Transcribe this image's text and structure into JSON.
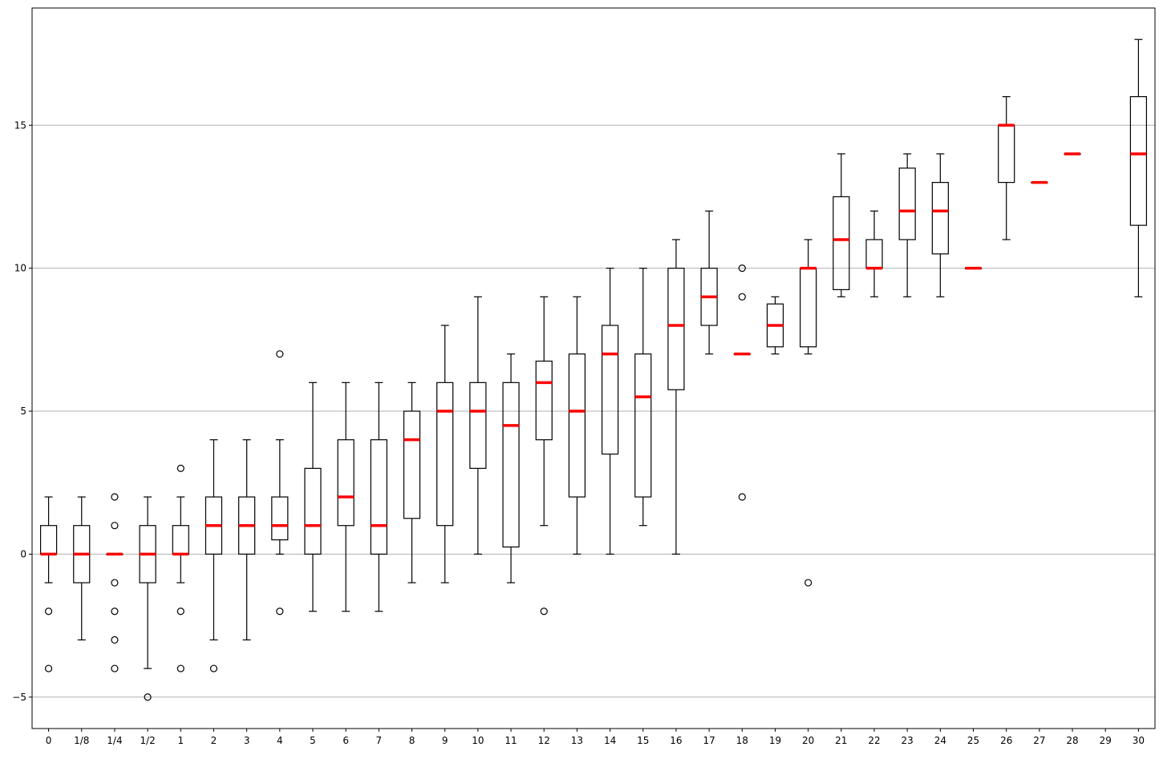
{
  "chart_data": {
    "type": "box",
    "title": "",
    "xlabel": "",
    "ylabel": "",
    "ylim": [
      -6.1,
      19.1
    ],
    "yticks": [
      -5,
      0,
      5,
      10,
      15
    ],
    "ytick_labels": [
      "−5",
      "0",
      "5",
      "10",
      "15"
    ],
    "grid": "horizontal",
    "median_color": "#ff0000",
    "box_color": "#000000",
    "grid_color": "#b0b0b0",
    "categories": [
      "0",
      "1/8",
      "1/4",
      "1/2",
      "1",
      "2",
      "3",
      "4",
      "5",
      "6",
      "7",
      "8",
      "9",
      "10",
      "11",
      "12",
      "13",
      "14",
      "15",
      "16",
      "17",
      "18",
      "19",
      "20",
      "21",
      "22",
      "23",
      "24",
      "25",
      "26",
      "27",
      "28",
      "29",
      "30"
    ],
    "boxes": [
      {
        "label": "0",
        "whislo": -1,
        "q1": 0,
        "med": 0,
        "q3": 1,
        "whishi": 2,
        "fliers": [
          -2,
          -4
        ]
      },
      {
        "label": "1/8",
        "whislo": -3,
        "q1": -1,
        "med": 0,
        "q3": 1,
        "whishi": 2,
        "fliers": []
      },
      {
        "label": "1/4",
        "whislo": 0,
        "q1": 0,
        "med": 0,
        "q3": 0,
        "whishi": 0,
        "fliers": [
          2,
          1,
          -1,
          -2,
          -3,
          -4
        ]
      },
      {
        "label": "1/2",
        "whislo": -4,
        "q1": -1,
        "med": 0,
        "q3": 1,
        "whishi": 2,
        "fliers": [
          -5
        ]
      },
      {
        "label": "1",
        "whislo": -1,
        "q1": 0,
        "med": 0,
        "q3": 1,
        "whishi": 2,
        "fliers": [
          3,
          -2,
          -4
        ]
      },
      {
        "label": "2",
        "whislo": -3,
        "q1": 0,
        "med": 1,
        "q3": 2,
        "whishi": 4,
        "fliers": [
          -4
        ]
      },
      {
        "label": "3",
        "whislo": -3,
        "q1": 0,
        "med": 1,
        "q3": 2,
        "whishi": 4,
        "fliers": []
      },
      {
        "label": "4",
        "whislo": 0,
        "q1": 0.5,
        "med": 1,
        "q3": 2,
        "whishi": 4,
        "fliers": [
          7,
          -2
        ]
      },
      {
        "label": "5",
        "whislo": -2,
        "q1": 0,
        "med": 1,
        "q3": 3,
        "whishi": 6,
        "fliers": []
      },
      {
        "label": "6",
        "whislo": -2,
        "q1": 1,
        "med": 2,
        "q3": 4,
        "whishi": 6,
        "fliers": []
      },
      {
        "label": "7",
        "whislo": -2,
        "q1": 0,
        "med": 1,
        "q3": 4,
        "whishi": 6,
        "fliers": []
      },
      {
        "label": "8",
        "whislo": -1,
        "q1": 1.25,
        "med": 4,
        "q3": 5,
        "whishi": 6,
        "fliers": []
      },
      {
        "label": "9",
        "whislo": -1,
        "q1": 1,
        "med": 5,
        "q3": 6,
        "whishi": 8,
        "fliers": []
      },
      {
        "label": "10",
        "whislo": 0,
        "q1": 3,
        "med": 5,
        "q3": 6,
        "whishi": 9,
        "fliers": []
      },
      {
        "label": "11",
        "whislo": -1,
        "q1": 0.25,
        "med": 4.5,
        "q3": 6,
        "whishi": 7,
        "fliers": []
      },
      {
        "label": "12",
        "whislo": 1,
        "q1": 4,
        "med": 6,
        "q3": 6.75,
        "whishi": 9,
        "fliers": [
          -2
        ]
      },
      {
        "label": "13",
        "whislo": 0,
        "q1": 2,
        "med": 5,
        "q3": 7,
        "whishi": 9,
        "fliers": []
      },
      {
        "label": "14",
        "whislo": 0,
        "q1": 3.5,
        "med": 7,
        "q3": 8,
        "whishi": 10,
        "fliers": []
      },
      {
        "label": "15",
        "whislo": 1,
        "q1": 2,
        "med": 5.5,
        "q3": 7,
        "whishi": 10,
        "fliers": []
      },
      {
        "label": "16",
        "whislo": 0,
        "q1": 5.75,
        "med": 8,
        "q3": 10,
        "whishi": 11,
        "fliers": []
      },
      {
        "label": "17",
        "whislo": 7,
        "q1": 8,
        "med": 9,
        "q3": 10,
        "whishi": 12,
        "fliers": []
      },
      {
        "label": "18",
        "whislo": 7,
        "q1": 7,
        "med": 7,
        "q3": 7,
        "whishi": 7,
        "fliers": [
          10,
          9,
          2
        ]
      },
      {
        "label": "19",
        "whislo": 7,
        "q1": 7.25,
        "med": 8,
        "q3": 8.75,
        "whishi": 9,
        "fliers": []
      },
      {
        "label": "20",
        "whislo": 7,
        "q1": 7.25,
        "med": 10,
        "q3": 10,
        "whishi": 11,
        "fliers": [
          -1
        ]
      },
      {
        "label": "21",
        "whislo": 9,
        "q1": 9.25,
        "med": 11,
        "q3": 12.5,
        "whishi": 14,
        "fliers": []
      },
      {
        "label": "22",
        "whislo": 9,
        "q1": 10,
        "med": 10,
        "q3": 11,
        "whishi": 12,
        "fliers": []
      },
      {
        "label": "23",
        "whislo": 9,
        "q1": 11,
        "med": 12,
        "q3": 13.5,
        "whishi": 14,
        "fliers": []
      },
      {
        "label": "24",
        "whislo": 9,
        "q1": 10.5,
        "med": 12,
        "q3": 13,
        "whishi": 14,
        "fliers": []
      },
      {
        "label": "25",
        "whislo": 10,
        "q1": 10,
        "med": 10,
        "q3": 10,
        "whishi": 10,
        "fliers": []
      },
      {
        "label": "26",
        "whislo": 11,
        "q1": 13,
        "med": 15,
        "q3": 15,
        "whishi": 16,
        "fliers": []
      },
      {
        "label": "27",
        "whislo": 13,
        "q1": 13,
        "med": 13,
        "q3": 13,
        "whishi": 13,
        "fliers": []
      },
      {
        "label": "28",
        "whislo": 14,
        "q1": 14,
        "med": 14,
        "q3": 14,
        "whishi": 14,
        "fliers": []
      },
      {
        "label": "29",
        "empty": true
      },
      {
        "label": "30",
        "whislo": 9,
        "q1": 11.5,
        "med": 14,
        "q3": 16,
        "whishi": 18,
        "fliers": []
      }
    ]
  }
}
